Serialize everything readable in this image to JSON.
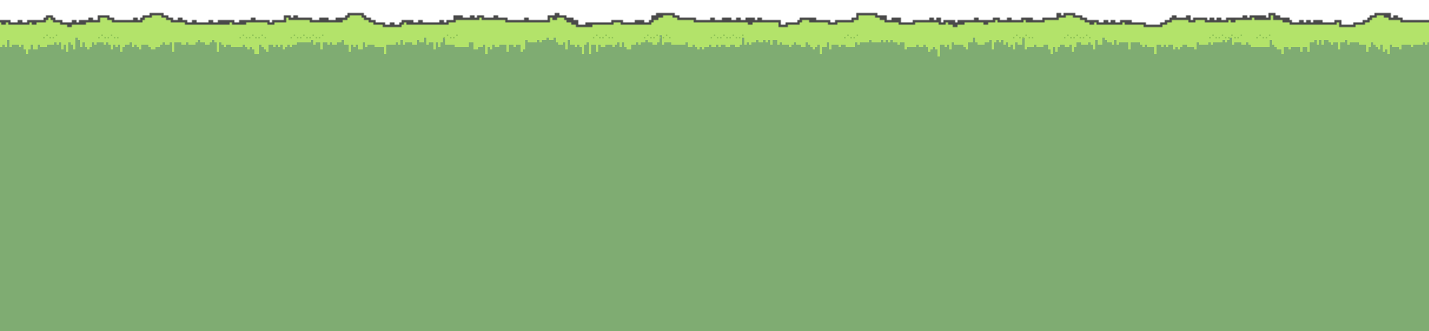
{
  "scene": {
    "kind": "pixel-art grass ground tile",
    "colors": {
      "sky": "#ffffff",
      "outline": "#4a4a4a",
      "grass_light": "#b3e36a",
      "grass_tuft": "#94c85a",
      "soil": "#7fac72"
    }
  }
}
